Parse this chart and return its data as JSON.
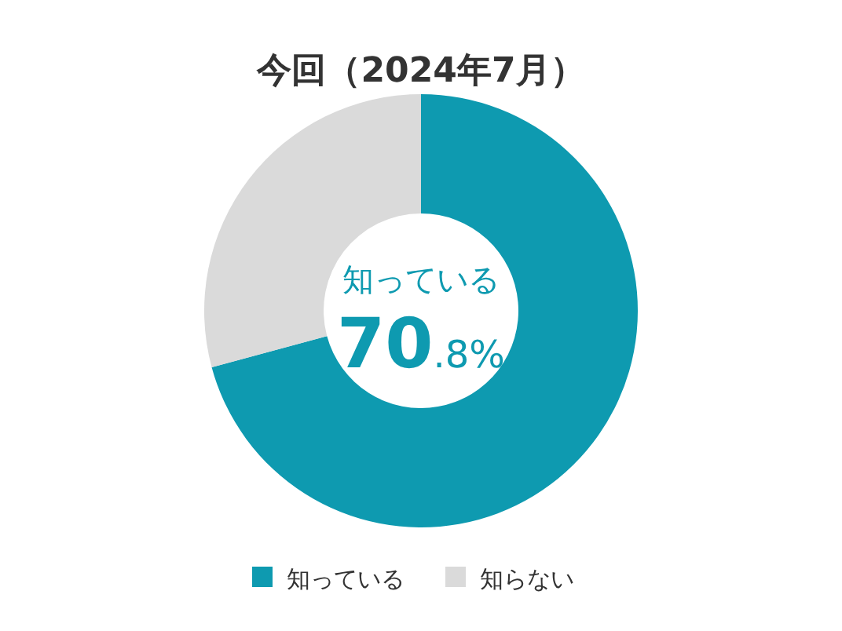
{
  "chart_data": {
    "type": "donut",
    "title": "今回（2024年7月）",
    "categories": [
      "知っている",
      "知らない"
    ],
    "values": [
      70.8,
      29.2
    ],
    "colors": [
      "#0e9ab0",
      "#dadada"
    ],
    "annotations": [
      "知っている",
      "70.8%"
    ],
    "legend": "bottom"
  }
}
